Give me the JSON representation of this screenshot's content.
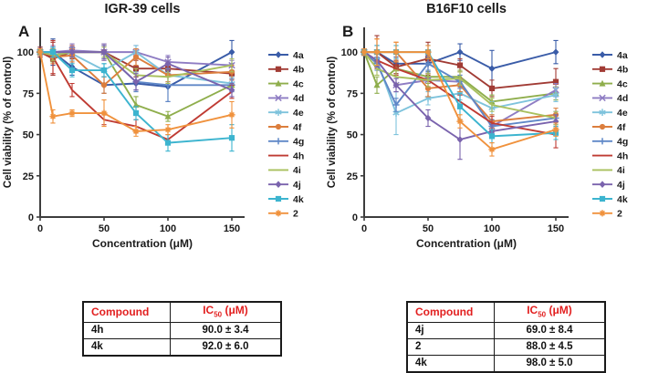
{
  "figure": {
    "background": "#ffffff",
    "text_color": "#1a1a1a",
    "axis_color": "#3d3d3d"
  },
  "tables": {
    "header": {
      "compound": "Compound",
      "ic": "IC",
      "ic_sub": "50",
      "ic_unit": " (μM)"
    },
    "colors": {
      "header_text": "#e21f1f",
      "border": "#1a1a1a"
    }
  },
  "chart_data": [
    {
      "type": "line",
      "panel": "A",
      "title": "IGR-39 cells",
      "xlabel": "Concentration (μM)",
      "ylabel": "Cell viability (% of control)",
      "x": [
        0,
        10,
        25,
        50,
        75,
        100,
        150
      ],
      "xlim": [
        0,
        160
      ],
      "ylim": [
        0,
        115
      ],
      "xticks": [
        0,
        50,
        100,
        150
      ],
      "yticks": [
        0,
        25,
        50,
        75,
        100
      ],
      "grid": false,
      "legend_position": "right",
      "series": [
        {
          "name": "4a",
          "color": "#3a5ca8",
          "marker": "diamond",
          "values": [
            100,
            100,
            91,
            80,
            81,
            79,
            100
          ],
          "err": [
            3,
            8,
            5,
            5,
            4,
            9,
            7
          ]
        },
        {
          "name": "4b",
          "color": "#a13b34",
          "marker": "square",
          "values": [
            100,
            96,
            100,
            100,
            90,
            90,
            87
          ],
          "err": [
            3,
            10,
            4,
            5,
            5,
            4,
            4
          ]
        },
        {
          "name": "4c",
          "color": "#8fae4c",
          "marker": "triangle",
          "values": [
            100,
            98,
            100,
            100,
            68,
            61,
            80
          ],
          "err": [
            2,
            4,
            3,
            4,
            5,
            3,
            4
          ]
        },
        {
          "name": "4d",
          "color": "#8e7cc3",
          "marker": "x",
          "values": [
            100,
            100,
            101,
            100,
            100,
            94,
            92
          ],
          "err": [
            2,
            4,
            4,
            5,
            4,
            4,
            3
          ]
        },
        {
          "name": "4e",
          "color": "#7ec3dc",
          "marker": "asterisk",
          "values": [
            100,
            100,
            99,
            89,
            100,
            86,
            81
          ],
          "err": [
            2,
            3,
            4,
            4,
            4,
            4,
            4
          ]
        },
        {
          "name": "4f",
          "color": "#dc7e3d",
          "marker": "circle",
          "values": [
            100,
            97,
            98,
            80,
            97,
            86,
            88
          ],
          "err": [
            2,
            4,
            4,
            5,
            5,
            4,
            4
          ]
        },
        {
          "name": "4g",
          "color": "#5f87c7",
          "marker": "plus",
          "values": [
            100,
            100,
            100,
            100,
            82,
            80,
            80
          ],
          "err": [
            2,
            3,
            3,
            4,
            6,
            10,
            4
          ]
        },
        {
          "name": "4h",
          "color": "#bf3b33",
          "marker": "none",
          "values": [
            100,
            97,
            77,
            59,
            55,
            47,
            76
          ],
          "err": [
            2,
            10,
            4,
            3,
            4,
            3,
            4
          ]
        },
        {
          "name": "4i",
          "color": "#a9c05e",
          "marker": "none",
          "values": [
            100,
            98,
            100,
            100,
            86,
            85,
            92
          ],
          "err": [
            2,
            3,
            3,
            3,
            4,
            4,
            4
          ]
        },
        {
          "name": "4j",
          "color": "#7a63ad",
          "marker": "diamond",
          "values": [
            100,
            100,
            100,
            100,
            82,
            93,
            77
          ],
          "err": [
            2,
            3,
            3,
            4,
            5,
            4,
            4
          ]
        },
        {
          "name": "4k",
          "color": "#3cb4cf",
          "marker": "square",
          "values": [
            100,
            100,
            89,
            89,
            63,
            45,
            48
          ],
          "err": [
            2,
            3,
            4,
            4,
            4,
            5,
            8
          ]
        },
        {
          "name": "2",
          "color": "#f0923d",
          "marker": "star",
          "values": [
            100,
            61,
            63,
            63,
            52,
            53,
            62
          ],
          "err": [
            2,
            4,
            2,
            8,
            3,
            3,
            8
          ]
        }
      ],
      "ic50_rows": [
        {
          "compound": "4h",
          "ic50": "90.0 ± 3.4"
        },
        {
          "compound": "4k",
          "ic50": "92.0 ± 6.0"
        }
      ]
    },
    {
      "type": "line",
      "panel": "B",
      "title": "B16F10 cells",
      "xlabel": "Concentration (μM)",
      "ylabel": "Cell viability (% of control)",
      "x": [
        0,
        10,
        25,
        50,
        75,
        100,
        150
      ],
      "xlim": [
        0,
        160
      ],
      "ylim": [
        0,
        115
      ],
      "xticks": [
        0,
        50,
        100,
        150
      ],
      "yticks": [
        0,
        25,
        50,
        75,
        100
      ],
      "grid": false,
      "legend_position": "right",
      "series": [
        {
          "name": "4a",
          "color": "#3a5ca8",
          "marker": "diamond",
          "values": [
            100,
            100,
            93,
            93,
            100,
            90,
            100
          ],
          "err": [
            2,
            4,
            4,
            5,
            5,
            11,
            7
          ]
        },
        {
          "name": "4b",
          "color": "#a13b34",
          "marker": "square",
          "values": [
            100,
            100,
            91,
            96,
            92,
            78,
            82
          ],
          "err": [
            2,
            10,
            4,
            10,
            4,
            5,
            8
          ]
        },
        {
          "name": "4c",
          "color": "#8fae4c",
          "marker": "triangle",
          "values": [
            100,
            80,
            90,
            85,
            85,
            70,
            75
          ],
          "err": [
            2,
            5,
            4,
            4,
            4,
            4,
            4
          ]
        },
        {
          "name": "4d",
          "color": "#8e7cc3",
          "marker": "x",
          "values": [
            100,
            95,
            80,
            83,
            82,
            55,
            77
          ],
          "err": [
            2,
            4,
            4,
            4,
            4,
            4,
            4
          ]
        },
        {
          "name": "4e",
          "color": "#7ec3dc",
          "marker": "asterisk",
          "values": [
            100,
            95,
            63,
            72,
            75,
            66,
            74
          ],
          "err": [
            2,
            4,
            13,
            4,
            4,
            4,
            4
          ]
        },
        {
          "name": "4f",
          "color": "#dc7e3d",
          "marker": "circle",
          "values": [
            100,
            100,
            100,
            78,
            80,
            58,
            62
          ],
          "err": [
            2,
            8,
            6,
            5,
            4,
            4,
            4
          ]
        },
        {
          "name": "4g",
          "color": "#5f87c7",
          "marker": "plus",
          "values": [
            100,
            93,
            68,
            93,
            82,
            55,
            60
          ],
          "err": [
            2,
            4,
            4,
            4,
            4,
            4,
            4
          ]
        },
        {
          "name": "4h",
          "color": "#bf3b33",
          "marker": "none",
          "values": [
            100,
            95,
            90,
            83,
            70,
            57,
            50
          ],
          "err": [
            2,
            4,
            4,
            4,
            4,
            4,
            8
          ]
        },
        {
          "name": "4i",
          "color": "#a9c05e",
          "marker": "none",
          "values": [
            100,
            90,
            85,
            83,
            84,
            68,
            60
          ],
          "err": [
            2,
            4,
            4,
            4,
            4,
            4,
            4
          ]
        },
        {
          "name": "4j",
          "color": "#7a63ad",
          "marker": "diamond",
          "values": [
            100,
            95,
            80,
            60,
            47,
            52,
            58
          ],
          "err": [
            2,
            4,
            4,
            5,
            12,
            4,
            4
          ]
        },
        {
          "name": "4k",
          "color": "#3cb4cf",
          "marker": "square",
          "values": [
            100,
            100,
            100,
            100,
            67,
            49,
            51
          ],
          "err": [
            2,
            4,
            4,
            4,
            8,
            4,
            4
          ]
        },
        {
          "name": "2",
          "color": "#f0923d",
          "marker": "star",
          "values": [
            100,
            100,
            100,
            100,
            58,
            41,
            53
          ],
          "err": [
            2,
            8,
            6,
            4,
            4,
            4,
            4
          ]
        }
      ],
      "ic50_rows": [
        {
          "compound": "4j",
          "ic50": "69.0 ± 8.4"
        },
        {
          "compound": "2",
          "ic50": "88.0 ± 4.5"
        },
        {
          "compound": "4k",
          "ic50": "98.0 ± 5.0"
        }
      ]
    }
  ]
}
